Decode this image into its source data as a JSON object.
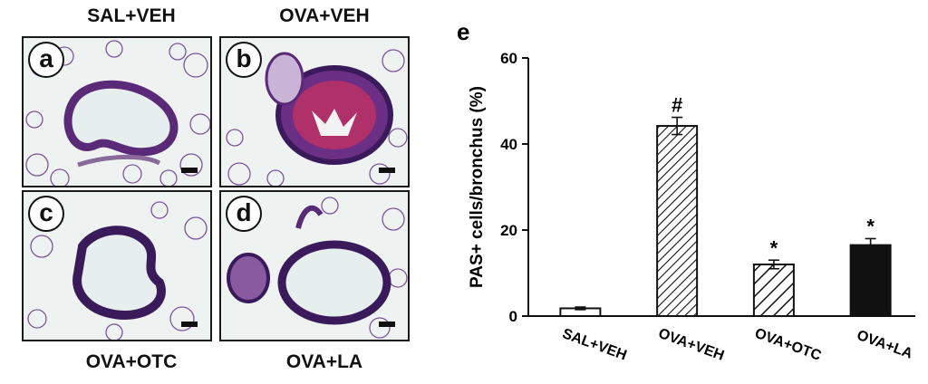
{
  "panels": [
    {
      "letter": "a",
      "label": "SAL+VEH"
    },
    {
      "letter": "b",
      "label": "OVA+VEH"
    },
    {
      "letter": "c",
      "label": "OVA+OTC"
    },
    {
      "letter": "d",
      "label": "OVA+LA"
    }
  ],
  "chart_panel_letter": "e",
  "colors": {
    "tissue_bg": "#eef3f2",
    "tissue_wall": "#5a2a78",
    "tissue_dark": "#2f1a55",
    "goblet": "#b0306a"
  },
  "chart_data": {
    "type": "bar",
    "categories": [
      "SAL+VEH",
      "OVA+VEH",
      "OVA+OTC",
      "OVA+LA"
    ],
    "values": [
      1.8,
      44.2,
      12.0,
      16.5
    ],
    "errors": [
      0.3,
      2.0,
      1.0,
      1.5
    ],
    "significance": [
      "",
      "#",
      "*",
      "*"
    ],
    "fills": [
      "white",
      "hatch-dense",
      "hatch-sparse",
      "black"
    ],
    "ylabel": "PAS+ cells/bronchus (%)",
    "xlabel": "",
    "ylim": [
      0,
      60
    ],
    "yticks": [
      0,
      20,
      40,
      60
    ],
    "grid": false
  }
}
